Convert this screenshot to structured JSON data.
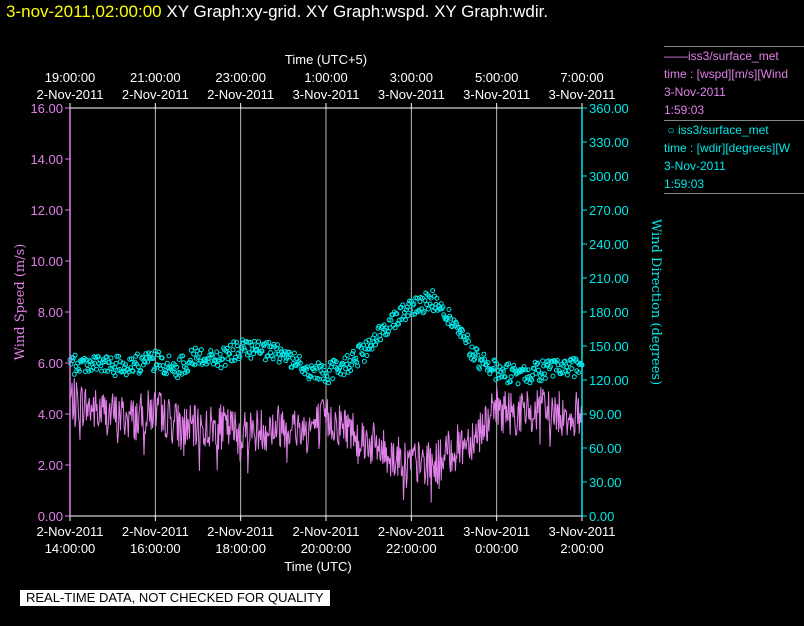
{
  "title": {
    "timestamp": "3-nov-2011,02:00:00",
    "graphs": "XY Graph:xy-grid.  XY Graph:wspd.  XY Graph:wdir."
  },
  "legend": [
    {
      "marker": "——",
      "name": "iss3/surface_met",
      "desc": "time : [wspd][m/s][Wind",
      "date": "3-Nov-2011",
      "time": "1:59:03",
      "color": "#e080e8"
    },
    {
      "marker": "○",
      "name": "iss3/surface_met",
      "desc": "time : [wdir][degrees][W",
      "date": "3-Nov-2011",
      "time": "1:59:03",
      "color": "#00e8e8"
    }
  ],
  "footer": "REAL-TIME DATA, NOT CHECKED FOR QUALITY",
  "chart_data": {
    "type": "line",
    "top_axis_title": "Time (UTC+5)",
    "top_ticks": [
      [
        "19:00:00",
        "2-Nov-2011"
      ],
      [
        "21:00:00",
        "2-Nov-2011"
      ],
      [
        "23:00:00",
        "2-Nov-2011"
      ],
      [
        "1:00:00",
        "3-Nov-2011"
      ],
      [
        "3:00:00",
        "3-Nov-2011"
      ],
      [
        "5:00:00",
        "3-Nov-2011"
      ],
      [
        "7:00:00",
        "3-Nov-2011"
      ]
    ],
    "bottom_axis_title": "Time (UTC)",
    "bottom_ticks": [
      [
        "2-Nov-2011",
        "14:00:00"
      ],
      [
        "2-Nov-2011",
        "16:00:00"
      ],
      [
        "2-Nov-2011",
        "18:00:00"
      ],
      [
        "2-Nov-2011",
        "20:00:00"
      ],
      [
        "2-Nov-2011",
        "22:00:00"
      ],
      [
        "3-Nov-2011",
        "0:00:00"
      ],
      [
        "3-Nov-2011",
        "2:00:00"
      ]
    ],
    "xlim_hours": [
      14,
      26
    ],
    "left_axis": {
      "label": "Wind Speed (m/s)",
      "ylim": [
        0,
        16
      ],
      "ticks": [
        "0.00",
        "2.00",
        "4.00",
        "6.00",
        "8.00",
        "10.00",
        "12.00",
        "14.00",
        "16.00"
      ],
      "color": "#e080e8"
    },
    "right_axis": {
      "label": "Wind Direction (degrees)",
      "ylim": [
        0,
        360
      ],
      "ticks": [
        "0.00",
        "30.00",
        "60.00",
        "90.00",
        "120.00",
        "150.00",
        "180.00",
        "210.00",
        "240.00",
        "270.00",
        "300.00",
        "330.00",
        "360.00"
      ],
      "color": "#00e8e8"
    },
    "grid": "vertical",
    "series": [
      {
        "name": "iss3/surface_met",
        "kind": "line",
        "axis": "left",
        "color": "#e080e8",
        "x": [
          14.0,
          14.5,
          15.0,
          15.5,
          16.0,
          16.5,
          17.0,
          17.5,
          18.0,
          18.5,
          19.0,
          19.5,
          20.0,
          20.5,
          21.0,
          21.5,
          22.0,
          22.5,
          23.0,
          23.5,
          24.0,
          24.5,
          25.0,
          25.5,
          26.0
        ],
        "y": [
          4.6,
          4.2,
          4.0,
          3.8,
          4.2,
          3.6,
          3.4,
          3.5,
          3.3,
          3.4,
          3.6,
          3.4,
          3.8,
          3.5,
          2.9,
          2.4,
          2.1,
          2.0,
          2.6,
          3.2,
          4.2,
          4.0,
          4.2,
          4.0,
          4.0
        ],
        "spread": 0.9
      },
      {
        "name": "iss3/surface_met",
        "kind": "scatter",
        "axis": "right",
        "color": "#00e8e8",
        "x": [
          14.0,
          14.5,
          15.0,
          15.5,
          16.0,
          16.5,
          17.0,
          17.5,
          18.0,
          18.5,
          19.0,
          19.5,
          20.0,
          20.5,
          21.0,
          21.5,
          22.0,
          22.5,
          23.0,
          23.5,
          24.0,
          24.5,
          25.0,
          25.5,
          26.0
        ],
        "y": [
          133,
          135,
          132,
          134,
          137,
          130,
          142,
          138,
          148,
          145,
          143,
          130,
          125,
          135,
          147,
          172,
          185,
          190,
          170,
          140,
          128,
          124,
          128,
          130,
          133
        ],
        "spread": 9
      }
    ]
  }
}
